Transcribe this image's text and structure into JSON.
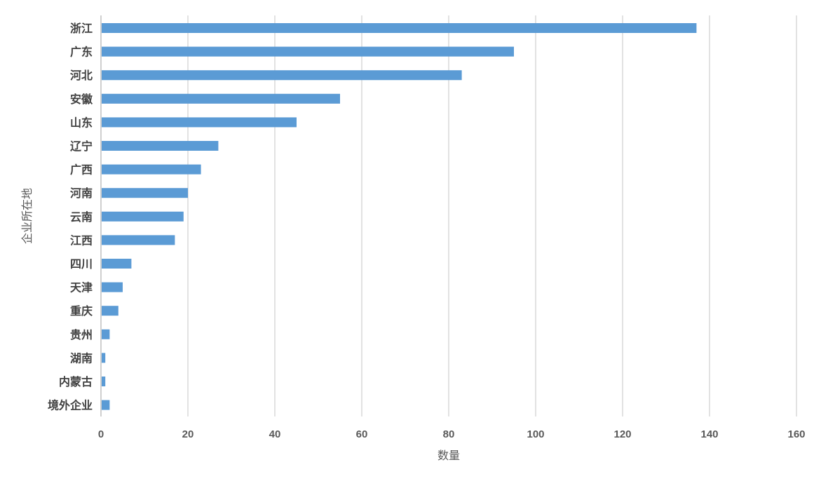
{
  "chart_data": {
    "type": "bar",
    "orientation": "horizontal",
    "title": "",
    "xlabel": "数量",
    "ylabel": "企业所在地",
    "xlim": [
      0,
      160
    ],
    "xticks": [
      0,
      20,
      40,
      60,
      80,
      100,
      120,
      140,
      160
    ],
    "grid": "vertical",
    "colors": {
      "bar": "#5b9bd5",
      "grid": "#d9d9d9"
    },
    "categories": [
      "浙江",
      "广东",
      "河北",
      "安徽",
      "山东",
      "辽宁",
      "广西",
      "河南",
      "云南",
      "江西",
      "四川",
      "天津",
      "重庆",
      "贵州",
      "湖南",
      "内蒙古",
      "境外企业"
    ],
    "values": [
      137,
      95,
      83,
      55,
      45,
      27,
      23,
      20,
      19,
      17,
      7,
      5,
      4,
      2,
      1,
      1,
      2
    ]
  }
}
